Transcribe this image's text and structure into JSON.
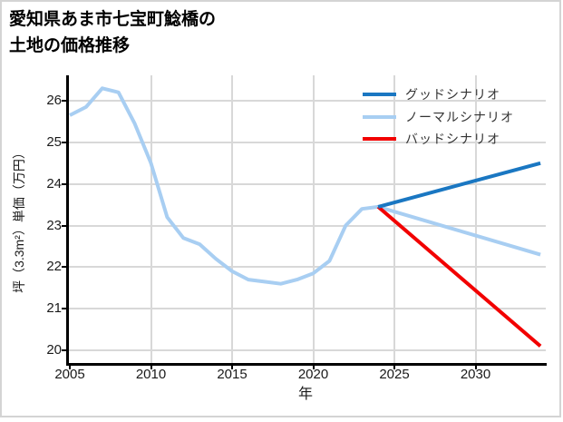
{
  "title": {
    "line1": "愛知県あま市七宝町鯰橋の",
    "line2": "土地の価格推移"
  },
  "legend": [
    {
      "label": "グッドシナリオ",
      "color": "#1a77c2"
    },
    {
      "label": "ノーマルシナリオ",
      "color": "#a8cef2"
    },
    {
      "label": "バッドシナリオ",
      "color": "#f20000"
    }
  ],
  "colors": {
    "good_scenario": "#1a77c2",
    "normal_scenario": "#a8cef2",
    "bad_scenario": "#f20000",
    "gridline": "#d8d8d8",
    "spine": "#000000",
    "frame_border": "#d4d4d4"
  },
  "chart_data": {
    "type": "line",
    "title": "愛知県あま市七宝町鯰橋の土地の価格推移",
    "xlabel": "年",
    "ylabel": "坪（3.3m²）単価（万円）",
    "xlim": [
      2005,
      2034.3
    ],
    "ylim": [
      19.7,
      26.5
    ],
    "x_ticks": [
      2005,
      2010,
      2015,
      2020,
      2025,
      2030
    ],
    "y_ticks": [
      20,
      21,
      22,
      23,
      24,
      25,
      26
    ],
    "grid": true,
    "legend_position": "upper-right",
    "series": [
      {
        "name": "グッドシナリオ",
        "color": "#1a77c2",
        "x": [
          2024,
          2034
        ],
        "y": [
          23.45,
          24.5
        ]
      },
      {
        "name": "ノーマルシナリオ",
        "color": "#a8cef2",
        "x": [
          2005,
          2006,
          2007,
          2008,
          2009,
          2010,
          2011,
          2012,
          2013,
          2014,
          2015,
          2016,
          2017,
          2018,
          2019,
          2020,
          2021,
          2022,
          2023,
          2024,
          2034
        ],
        "y": [
          25.65,
          25.85,
          26.3,
          26.2,
          25.45,
          24.5,
          23.2,
          22.7,
          22.55,
          22.2,
          21.9,
          21.7,
          21.65,
          21.6,
          21.7,
          21.85,
          22.15,
          23.0,
          23.4,
          23.45,
          22.3
        ]
      },
      {
        "name": "バッドシナリオ",
        "color": "#f20000",
        "x": [
          2024,
          2034
        ],
        "y": [
          23.45,
          20.1
        ]
      }
    ]
  }
}
